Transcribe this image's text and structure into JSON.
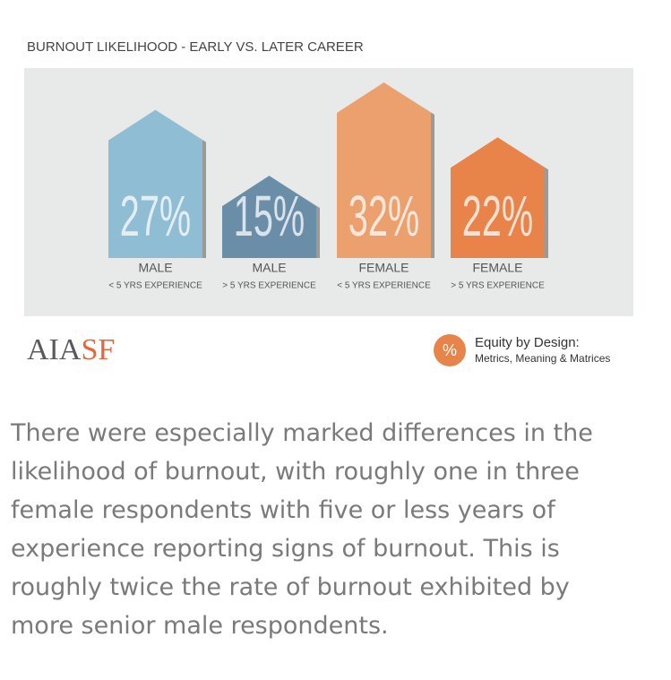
{
  "chart_data": {
    "type": "house-bar",
    "title": "BURNOUT LIKELIHOOD - EARLY VS. LATER CAREER",
    "categories": [
      "MALE",
      "MALE",
      "FEMALE",
      "FEMALE"
    ],
    "category_details": [
      "< 5 YRS EXPERIENCE",
      "> 5 YRS EXPERIENCE",
      "< 5 YRS EXPERIENCE",
      "> 5 YRS EXPERIENCE"
    ],
    "values": [
      27,
      15,
      32,
      22
    ],
    "value_labels": [
      "27%",
      "15%",
      "32%",
      "22%"
    ],
    "colors": [
      "#8fbdd3",
      "#6b8ea8",
      "#eca06e",
      "#e8834a"
    ]
  },
  "footer": {
    "logo_left": "AIA",
    "logo_right": "SF",
    "badge": "%",
    "badge_title": "Equity by Design:",
    "badge_subtitle": "Metrics, Meaning & Matrices"
  },
  "paragraph": "There were especially marked differences in the likelihood of burnout, with roughly one in three female respondents with five or less years of experience reporting signs of burnout. This is roughly twice the rate of burnout exhibited by more senior male respondents."
}
